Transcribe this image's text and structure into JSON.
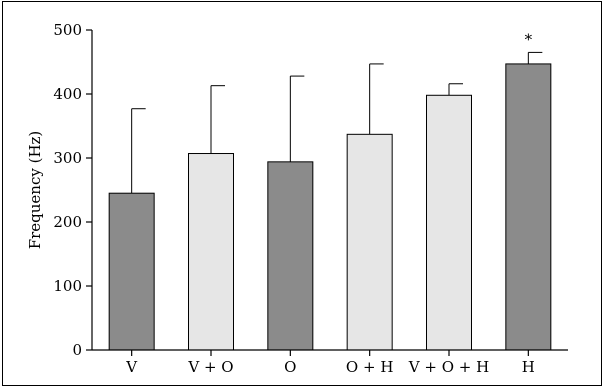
{
  "chart_data": {
    "type": "bar",
    "categories": [
      "V",
      "V + O",
      "O",
      "O + H",
      "V + O + H",
      "H"
    ],
    "values": [
      245,
      307,
      294,
      337,
      398,
      447
    ],
    "error_upper": [
      377,
      413,
      428,
      447,
      416,
      465
    ],
    "bar_colors": [
      "#8b8b8b",
      "#e6e6e6",
      "#8b8b8b",
      "#e6e6e6",
      "#e6e6e6",
      "#8b8b8b"
    ],
    "annotations": [
      {
        "category_index": 5,
        "text": "*"
      }
    ],
    "title": "",
    "xlabel": "",
    "ylabel": "Frequency (Hz)",
    "ylim": [
      0,
      500
    ],
    "yticks": [
      0,
      100,
      200,
      300,
      400,
      500
    ],
    "grid": false,
    "legend": "none"
  }
}
